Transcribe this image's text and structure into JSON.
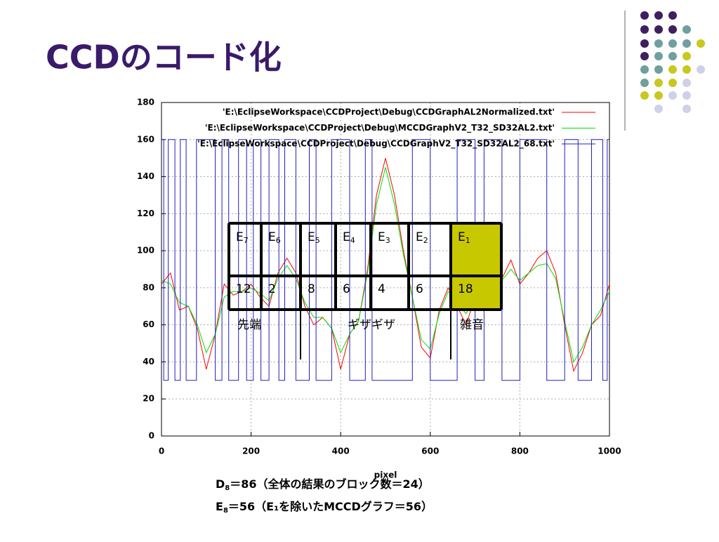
{
  "slide": {
    "title": "CCDのコード化",
    "notes": [
      {
        "base": "D",
        "sub": "8",
        "text": "＝86（全体の結果のブロック数＝24）"
      },
      {
        "base": "E",
        "sub": "8",
        "text": "＝56（E₁を除いたMCCDグラフ＝56）"
      }
    ]
  },
  "chart_data": {
    "type": "line",
    "x_label": "pixel",
    "xlim": [
      0,
      1000
    ],
    "xticks": [
      0,
      200,
      400,
      600,
      800,
      1000
    ],
    "ylim": [
      0,
      180
    ],
    "yticks": [
      0,
      20,
      40,
      60,
      80,
      100,
      120,
      140,
      160,
      180
    ],
    "grid": true,
    "legend": "top-right",
    "series": [
      {
        "name": "'E:\\EclipseWorkspace\\CCDProject\\Debug\\CCDGraphAL2Normalized.txt'",
        "color": "#ff0000",
        "x": [
          0,
          20,
          40,
          60,
          80,
          100,
          120,
          140,
          160,
          180,
          200,
          220,
          240,
          260,
          280,
          300,
          320,
          340,
          360,
          380,
          400,
          420,
          440,
          460,
          480,
          500,
          520,
          540,
          560,
          580,
          600,
          620,
          640,
          660,
          680,
          700,
          720,
          740,
          760,
          780,
          800,
          820,
          840,
          860,
          880,
          900,
          920,
          940,
          960,
          980,
          1000
        ],
        "values": [
          82,
          88,
          68,
          70,
          58,
          36,
          55,
          82,
          76,
          78,
          82,
          75,
          70,
          88,
          96,
          88,
          70,
          60,
          64,
          58,
          36,
          55,
          62,
          90,
          130,
          150,
          130,
          100,
          75,
          48,
          42,
          68,
          80,
          70,
          60,
          75,
          80,
          90,
          85,
          95,
          82,
          88,
          96,
          100,
          88,
          60,
          35,
          45,
          60,
          65,
          82
        ]
      },
      {
        "name": "'E:\\EclipseWorkspace\\CCDProject\\Debug\\MCCDGraphV2_T32_SD32AL2.txt'",
        "color": "#00e000",
        "x": [
          0,
          20,
          40,
          60,
          80,
          100,
          120,
          140,
          160,
          180,
          200,
          220,
          240,
          260,
          280,
          300,
          320,
          340,
          360,
          380,
          400,
          420,
          440,
          460,
          480,
          500,
          520,
          540,
          560,
          580,
          600,
          620,
          640,
          660,
          680,
          700,
          720,
          740,
          760,
          780,
          800,
          820,
          840,
          860,
          880,
          900,
          920,
          940,
          960,
          980,
          1000
        ],
        "values": [
          84,
          82,
          72,
          70,
          60,
          45,
          55,
          75,
          78,
          78,
          80,
          77,
          73,
          85,
          92,
          85,
          72,
          64,
          64,
          58,
          45,
          55,
          62,
          88,
          125,
          145,
          125,
          98,
          75,
          52,
          47,
          66,
          78,
          72,
          66,
          75,
          80,
          86,
          84,
          90,
          84,
          88,
          92,
          93,
          85,
          62,
          40,
          48,
          60,
          68,
          78
        ]
      },
      {
        "name": "'E:\\EclipseWorkspace\\CCDProject\\Debug\\CCDGraphV2_T32_SD32AL2_68.txt'",
        "color": "#2020c0",
        "x": [
          0,
          5,
          5,
          15,
          15,
          30,
          30,
          42,
          42,
          55,
          55,
          78,
          78,
          120,
          120,
          135,
          135,
          150,
          150,
          172,
          172,
          190,
          190,
          205,
          205,
          222,
          222,
          240,
          240,
          262,
          262,
          275,
          275,
          300,
          300,
          330,
          330,
          345,
          345,
          380,
          380,
          420,
          420,
          455,
          455,
          470,
          470,
          560,
          560,
          600,
          600,
          660,
          660,
          700,
          700,
          720,
          720,
          760,
          760,
          800,
          800,
          860,
          860,
          900,
          900,
          930,
          930,
          960,
          960,
          985,
          985,
          995,
          995,
          1000
        ],
        "values": [
          160,
          160,
          30,
          30,
          160,
          160,
          30,
          30,
          160,
          160,
          30,
          30,
          160,
          160,
          30,
          30,
          160,
          160,
          30,
          30,
          160,
          160,
          30,
          30,
          160,
          160,
          30,
          30,
          160,
          160,
          30,
          30,
          160,
          160,
          30,
          30,
          160,
          160,
          30,
          30,
          160,
          160,
          30,
          30,
          160,
          160,
          30,
          30,
          160,
          160,
          30,
          30,
          160,
          160,
          30,
          30,
          160,
          160,
          30,
          30,
          160,
          160,
          30,
          30,
          160,
          160,
          30,
          30,
          160,
          160,
          30,
          30,
          160,
          160
        ]
      }
    ]
  },
  "table": {
    "headers": [
      {
        "base": "E",
        "sub": "7"
      },
      {
        "base": "E",
        "sub": "6"
      },
      {
        "base": "E",
        "sub": "5"
      },
      {
        "base": "E",
        "sub": "4"
      },
      {
        "base": "E",
        "sub": "3"
      },
      {
        "base": "E",
        "sub": "2"
      },
      {
        "base": "E",
        "sub": "1"
      }
    ],
    "counts": [
      "12",
      "2",
      "8",
      "6",
      "4",
      "6",
      "18"
    ],
    "groups": [
      "先端",
      "ギザギザ",
      "雑音"
    ]
  }
}
